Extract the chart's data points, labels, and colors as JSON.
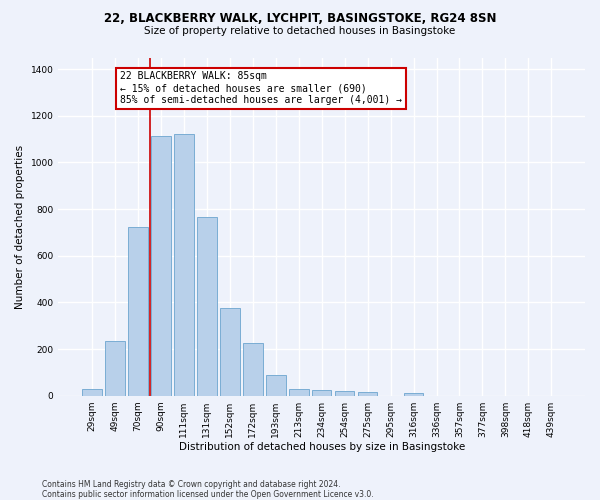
{
  "title_line1": "22, BLACKBERRY WALK, LYCHPIT, BASINGSTOKE, RG24 8SN",
  "title_line2": "Size of property relative to detached houses in Basingstoke",
  "xlabel": "Distribution of detached houses by size in Basingstoke",
  "ylabel": "Number of detached properties",
  "footnote": "Contains HM Land Registry data © Crown copyright and database right 2024.\nContains public sector information licensed under the Open Government Licence v3.0.",
  "bar_labels": [
    "29sqm",
    "49sqm",
    "70sqm",
    "90sqm",
    "111sqm",
    "131sqm",
    "152sqm",
    "172sqm",
    "193sqm",
    "213sqm",
    "234sqm",
    "254sqm",
    "275sqm",
    "295sqm",
    "316sqm",
    "336sqm",
    "357sqm",
    "377sqm",
    "398sqm",
    "418sqm",
    "439sqm"
  ],
  "bar_values": [
    30,
    235,
    725,
    1115,
    1120,
    765,
    375,
    225,
    90,
    30,
    25,
    20,
    15,
    0,
    10,
    0,
    0,
    0,
    0,
    0,
    0
  ],
  "bar_color": "#b8d0ea",
  "bar_edge_color": "#7aadd4",
  "ylim": [
    0,
    1450
  ],
  "yticks": [
    0,
    200,
    400,
    600,
    800,
    1000,
    1200,
    1400
  ],
  "vline_x": 2.5,
  "annotation_text": "22 BLACKBERRY WALK: 85sqm\n← 15% of detached houses are smaller (690)\n85% of semi-detached houses are larger (4,001) →",
  "annotation_box_facecolor": "#ffffff",
  "annotation_box_edgecolor": "#cc0000",
  "vline_color": "#cc0000",
  "background_color": "#eef2fb",
  "grid_color": "#ffffff",
  "title_fontsize": 8.5,
  "subtitle_fontsize": 7.5,
  "ylabel_fontsize": 7.5,
  "xlabel_fontsize": 7.5,
  "tick_fontsize": 6.5,
  "annotation_fontsize": 7,
  "footnote_fontsize": 5.5
}
